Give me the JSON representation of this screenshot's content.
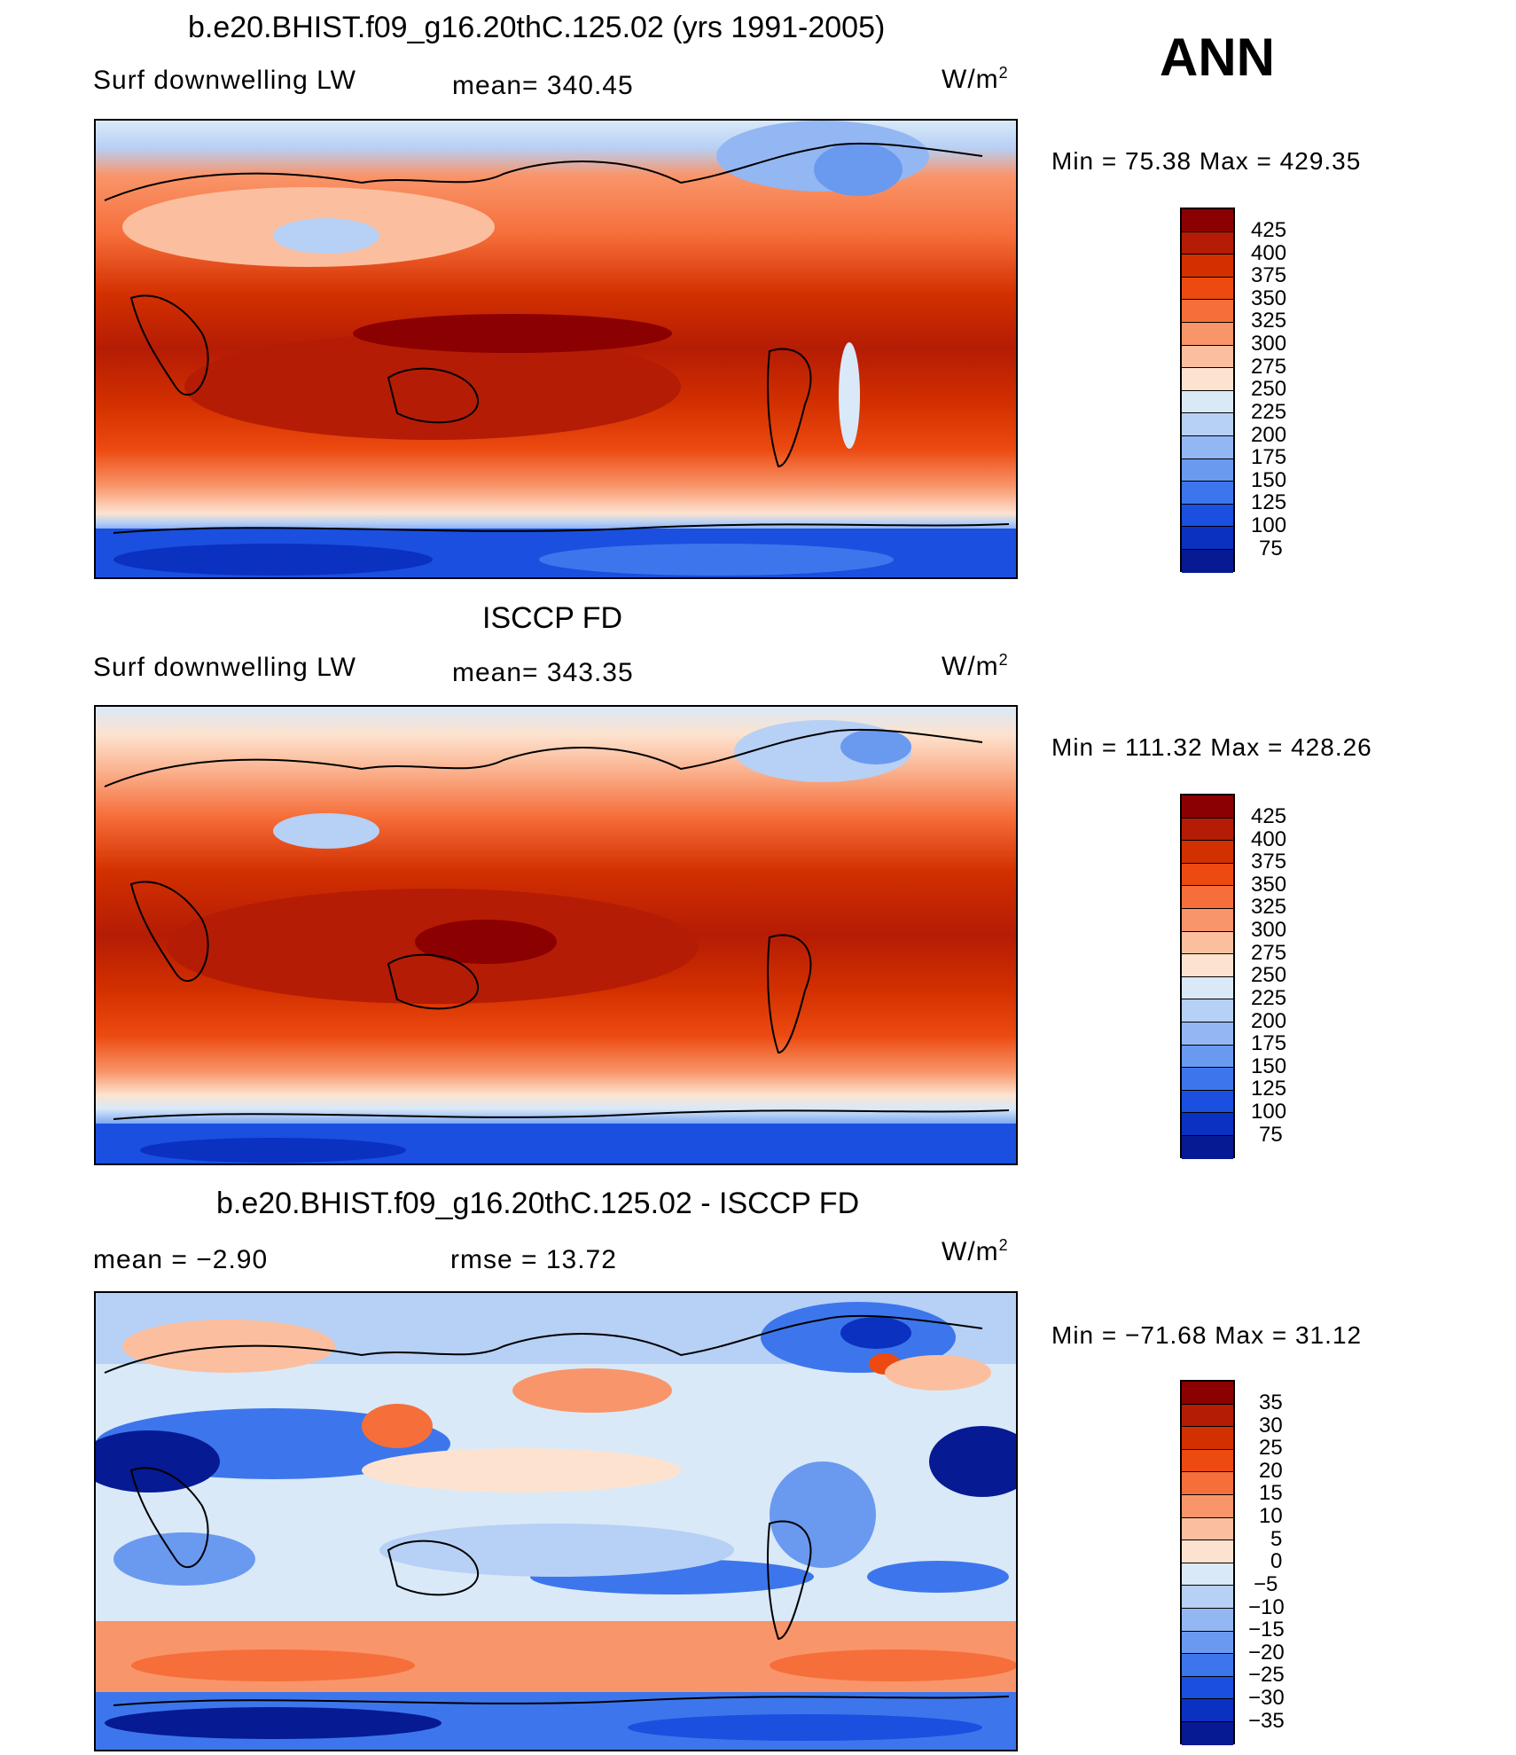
{
  "header": {
    "season": "ANN"
  },
  "panels": [
    {
      "title": "b.e20.BHIST.f09_g16.20thC.125.02 (yrs 1991-2005)",
      "left_label": "Surf downwelling LW",
      "center_label": "mean=  340.45",
      "units": "W/m",
      "units_exp": "2",
      "minmax": "Min =   75.38 Max = 429.35",
      "colorbar_labels": [
        "425",
        "400",
        "375",
        "350",
        "325",
        "300",
        "275",
        "250",
        "225",
        "200",
        "175",
        "150",
        "125",
        "100",
        "75"
      ]
    },
    {
      "title": "ISCCP FD",
      "left_label": "Surf downwelling LW",
      "center_label": "mean=  343.35",
      "units": "W/m",
      "units_exp": "2",
      "minmax": "Min = 111.32 Max = 428.26",
      "colorbar_labels": [
        "425",
        "400",
        "375",
        "350",
        "325",
        "300",
        "275",
        "250",
        "225",
        "200",
        "175",
        "150",
        "125",
        "100",
        "75"
      ]
    },
    {
      "title": "b.e20.BHIST.f09_g16.20thC.125.02 - ISCCP FD",
      "left_label": "mean =   −2.90",
      "center_label": "rmse =   13.72",
      "units": "W/m",
      "units_exp": "2",
      "minmax": "Min = −71.68 Max =   31.12",
      "colorbar_labels": [
        "35",
        "30",
        "25",
        "20",
        "15",
        "10",
        "5",
        "0",
        "−5",
        "−10",
        "−15",
        "−20",
        "−25",
        "−30",
        "−35"
      ]
    }
  ],
  "colors": [
    "#8b0000",
    "#b51c05",
    "#d33000",
    "#ec4a10",
    "#f66e3a",
    "#f9956a",
    "#fbbf9f",
    "#fde3cf",
    "#d9e9f8",
    "#b7d0f5",
    "#93b7f2",
    "#6a99f0",
    "#3d76ec",
    "#1a4fe0",
    "#0b31c0",
    "#061a94",
    "#02085f"
  ]
}
